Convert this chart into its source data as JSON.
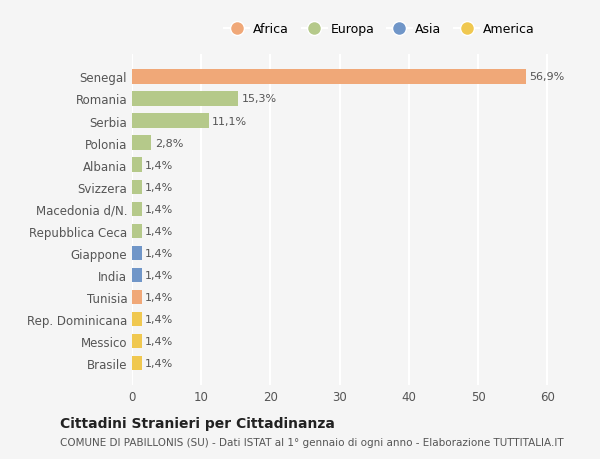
{
  "categories": [
    "Senegal",
    "Romania",
    "Serbia",
    "Polonia",
    "Albania",
    "Svizzera",
    "Macedonia d/N.",
    "Repubblica Ceca",
    "Giappone",
    "India",
    "Tunisia",
    "Rep. Dominicana",
    "Messico",
    "Brasile"
  ],
  "values": [
    56.9,
    15.3,
    11.1,
    2.8,
    1.4,
    1.4,
    1.4,
    1.4,
    1.4,
    1.4,
    1.4,
    1.4,
    1.4,
    1.4
  ],
  "labels": [
    "56,9%",
    "15,3%",
    "11,1%",
    "2,8%",
    "1,4%",
    "1,4%",
    "1,4%",
    "1,4%",
    "1,4%",
    "1,4%",
    "1,4%",
    "1,4%",
    "1,4%",
    "1,4%"
  ],
  "colors": [
    "#F0A878",
    "#B5C98A",
    "#B5C98A",
    "#B5C98A",
    "#B5C98A",
    "#B5C98A",
    "#B5C98A",
    "#B5C98A",
    "#7096C8",
    "#7096C8",
    "#F0A878",
    "#F0C850",
    "#F0C850",
    "#F0C850"
  ],
  "legend_labels": [
    "Africa",
    "Europa",
    "Asia",
    "America"
  ],
  "legend_colors": [
    "#F0A878",
    "#B5C98A",
    "#7096C8",
    "#F0C850"
  ],
  "xlim": [
    0,
    65
  ],
  "xticks": [
    0,
    10,
    20,
    30,
    40,
    50,
    60
  ],
  "title": "Cittadini Stranieri per Cittadinanza",
  "subtitle": "COMUNE DI PABILLONIS (SU) - Dati ISTAT al 1° gennaio di ogni anno - Elaborazione TUTTITALIA.IT",
  "bg_color": "#f5f5f5",
  "grid_color": "#ffffff"
}
